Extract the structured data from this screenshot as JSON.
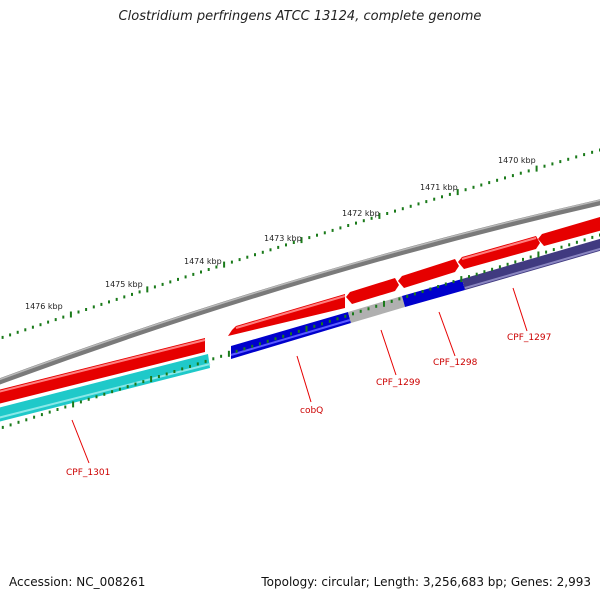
{
  "title": "Clostridium perfringens ATCC 13124, complete genome",
  "footer": {
    "accession": "Accession: NC_008261",
    "topology": "Topology: circular; Length: 3,256,683 bp; Genes: 2,993"
  },
  "colors": {
    "forward_gene": "#e60000",
    "reverse_blue": "#0000cc",
    "reverse_cyan": "#1fc9c9",
    "reverse_navy": "#403a80",
    "pseudo_gray": "#b0b0b0",
    "backbone": "#808080",
    "tick": "#1a7a1a",
    "label": "#cc0000"
  },
  "scale_labels": [
    "1476 kbp",
    "1475 kbp",
    "1474 kbp",
    "1473 kbp",
    "1472 kbp",
    "1471 kbp",
    "1470 kbp"
  ],
  "gene_labels": [
    "CPF_1301",
    "cobQ",
    "CPF_1299",
    "CPF_1298",
    "CPF_1297"
  ]
}
